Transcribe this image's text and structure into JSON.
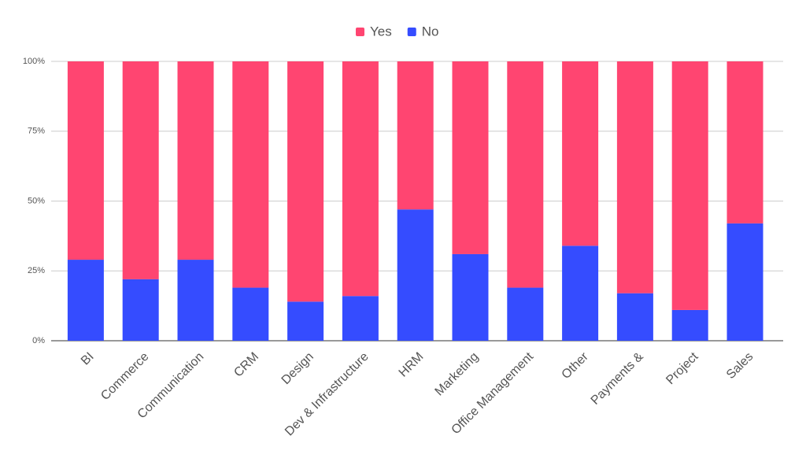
{
  "chart_data": {
    "type": "stacked_bar",
    "categories": [
      "BI",
      "Commerce",
      "Communication",
      "CRM",
      "Design",
      "Dev & Infrastructure",
      "HRM",
      "Marketing",
      "Office Management",
      "Other",
      "Payments &",
      "Project",
      "Sales"
    ],
    "series": [
      {
        "name": "Yes",
        "color": "#ff4571",
        "values": [
          71,
          78,
          71,
          81,
          86,
          84,
          53,
          69,
          81,
          66,
          83,
          89,
          58
        ]
      },
      {
        "name": "No",
        "color": "#354cff",
        "values": [
          29,
          22,
          29,
          19,
          14,
          16,
          47,
          31,
          19,
          34,
          17,
          11,
          42
        ]
      }
    ],
    "ylim": [
      0,
      100
    ],
    "yticks": [
      {
        "value": 0,
        "label": "0%"
      },
      {
        "value": 25,
        "label": "25%"
      },
      {
        "value": 50,
        "label": "50%"
      },
      {
        "value": 75,
        "label": "75%"
      },
      {
        "value": 100,
        "label": "100%"
      }
    ],
    "grid": true,
    "legend": "top"
  }
}
